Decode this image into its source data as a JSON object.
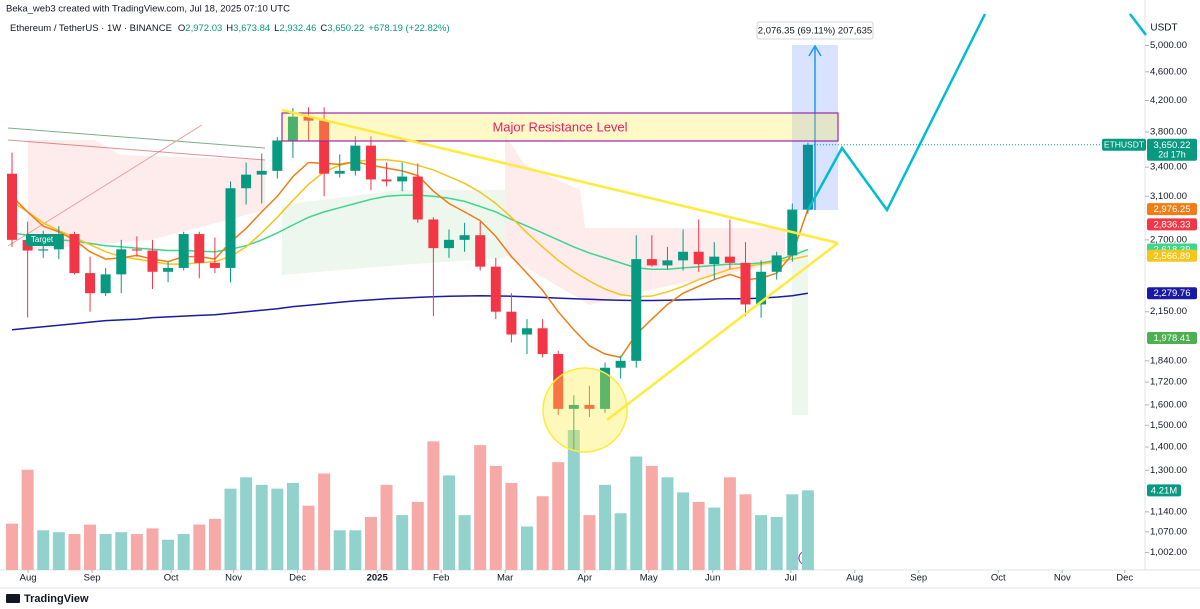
{
  "header": {
    "credit": "Beka_web3 created with TradingView.com, Jul 18, 2025 07:10 UTC",
    "symbol": "Ethereum / TetherUS · 1W · BINANCE",
    "open_letter": "O",
    "open": "2,972.03",
    "high_letter": "H",
    "high": "3,673.84",
    "low_letter": "L",
    "low": "2,932.46",
    "close_letter": "C",
    "close": "3,650.22",
    "change": "+678.19 (+22.82%)",
    "currency": "USDT"
  },
  "footer": {
    "brand": "TradingView"
  },
  "annotations": {
    "resistance": "Major Resistance Level",
    "measure": "2,076.35 (69.11%) 207,635",
    "target": "Target"
  },
  "chart_data": {
    "type": "candlestick",
    "log_scale": true,
    "grid": false,
    "up_color": "#089981",
    "down_color": "#f23645",
    "up_volume_color": "#92d2cc",
    "down_volume_color": "#f7a9a7",
    "ylim": [
      948,
      5560
    ],
    "yticks": [
      {
        "value": 1002,
        "label": "1,002.00"
      },
      {
        "value": 1070,
        "label": "1,070.00"
      },
      {
        "value": 1140,
        "label": "1,140.00"
      },
      {
        "value": 1300,
        "label": "1,300.00"
      },
      {
        "value": 1400,
        "label": "1,400.00"
      },
      {
        "value": 1500,
        "label": "1,500.00"
      },
      {
        "value": 1600,
        "label": "1,600.00"
      },
      {
        "value": 1720,
        "label": "1,720.00"
      },
      {
        "value": 1840,
        "label": "1,840.00"
      },
      {
        "value": 2150,
        "label": "2,150.00"
      },
      {
        "value": 2700,
        "label": "2,700.00"
      },
      {
        "value": 3100,
        "label": "3,100.00"
      },
      {
        "value": 3400,
        "label": "3,400.00"
      },
      {
        "value": 3800,
        "label": "3,800.00"
      },
      {
        "value": 4200,
        "label": "4,200.00"
      },
      {
        "value": 4600,
        "label": "4,600.00"
      },
      {
        "value": 5000,
        "label": "5,000.00"
      }
    ],
    "xlim": [
      -0.77,
      72.6
    ],
    "xticks": [
      {
        "value": 1.03,
        "label": "Aug"
      },
      {
        "value": 5.13,
        "label": "Sep"
      },
      {
        "value": 10.2,
        "label": "Oct"
      },
      {
        "value": 14.2,
        "label": "Nov"
      },
      {
        "value": 18.3,
        "label": "Dec"
      },
      {
        "value": 23.4,
        "label": "2025"
      },
      {
        "value": 27.5,
        "label": "Feb"
      },
      {
        "value": 31.6,
        "label": "Mar"
      },
      {
        "value": 36.7,
        "label": "Apr"
      },
      {
        "value": 40.8,
        "label": "May"
      },
      {
        "value": 44.9,
        "label": "Jun"
      },
      {
        "value": 49.9,
        "label": "Jul"
      },
      {
        "value": 54.0,
        "label": "Aug"
      },
      {
        "value": 58.1,
        "label": "Sep"
      },
      {
        "value": 63.2,
        "label": "Oct"
      },
      {
        "value": 67.3,
        "label": "Nov"
      },
      {
        "value": 71.3,
        "label": "Dec"
      }
    ],
    "open": [
      3330,
      2700,
      2610,
      2620,
      2750,
      2430,
      2280,
      2420,
      2620,
      2610,
      2440,
      2470,
      2750,
      2510,
      2470,
      3180,
      3320,
      3360,
      3700,
      3990,
      3940,
      3330,
      3360,
      3640,
      3270,
      3250,
      3300,
      2880,
      2630,
      2700,
      2740,
      2480,
      2150,
      2000,
      2040,
      1880,
      1580,
      1600,
      1580,
      1800,
      1840,
      2540,
      2490,
      2530,
      2600,
      2500,
      2560,
      2510,
      2200,
      2440,
      2570,
      2972.03
    ],
    "high": [
      3560,
      2860,
      2780,
      2820,
      2770,
      2560,
      2470,
      2700,
      2730,
      2700,
      2520,
      2770,
      2770,
      2720,
      3250,
      3450,
      3550,
      3740,
      4100,
      4110,
      4110,
      3540,
      3750,
      3750,
      3450,
      3450,
      3440,
      2900,
      2790,
      2850,
      2860,
      2550,
      2280,
      2100,
      2100,
      1900,
      1650,
      1700,
      1830,
      1870,
      2740,
      2740,
      2640,
      2790,
      2880,
      2680,
      2880,
      2680,
      2530,
      2600,
      3030,
      3673.84
    ],
    "low": [
      2640,
      2111,
      2550,
      2540,
      2420,
      2150,
      2260,
      2280,
      2560,
      2310,
      2360,
      2450,
      2390,
      2430,
      2360,
      3020,
      3030,
      3280,
      3500,
      3700,
      3100,
      3290,
      3310,
      3160,
      3200,
      3150,
      2850,
      2120,
      2550,
      2600,
      2450,
      2100,
      1950,
      1880,
      1860,
      1550,
      1390,
      1540,
      1560,
      1740,
      1800,
      2480,
      2460,
      2450,
      2440,
      2380,
      2460,
      2120,
      2110,
      2380,
      2520,
      2932.46
    ],
    "close": [
      2700,
      2610,
      2620,
      2750,
      2430,
      2280,
      2420,
      2620,
      2610,
      2440,
      2470,
      2750,
      2510,
      2470,
      3180,
      3320,
      3360,
      3700,
      3990,
      3940,
      3330,
      3360,
      3640,
      3270,
      3250,
      3300,
      2880,
      2630,
      2700,
      2740,
      2480,
      2150,
      2000,
      2040,
      1880,
      1580,
      1600,
      1580,
      1800,
      1840,
      2540,
      2490,
      2530,
      2600,
      2500,
      2560,
      2510,
      2200,
      2440,
      2570,
      2972.03,
      3650.22
    ],
    "volume": {
      "values": [
        2.45,
        5.3,
        2.1,
        2.0,
        1.9,
        2.4,
        1.9,
        2.0,
        1.9,
        2.2,
        1.6,
        1.9,
        2.4,
        2.7,
        4.3,
        4.9,
        4.5,
        4.3,
        4.6,
        3.4,
        5.1,
        2.1,
        2.1,
        2.8,
        4.5,
        2.9,
        3.6,
        6.8,
        5.0,
        2.9,
        6.6,
        5.5,
        4.6,
        2.3,
        3.9,
        5.7,
        7.4,
        2.9,
        4.5,
        3.0,
        6.0,
        5.5,
        4.9,
        4.1,
        3.6,
        3.3,
        4.9,
        4.0,
        2.9,
        2.8,
        4.0,
        4.21
      ],
      "value_labels": [
        null,
        null,
        null,
        null,
        null,
        null,
        null,
        null,
        null,
        null,
        null,
        null,
        null,
        null,
        null,
        null,
        null,
        null,
        null,
        null,
        null,
        null,
        null,
        null,
        null,
        null,
        null,
        null,
        null,
        null,
        null,
        null,
        null,
        null,
        null,
        null,
        null,
        null,
        null,
        null,
        null,
        null,
        null,
        null,
        null,
        null,
        null,
        null,
        null,
        null,
        null,
        "4.21M"
      ]
    },
    "last_price": {
      "name": "ETHUSDT",
      "label": "3,650.22",
      "countdown": "2d 17h"
    },
    "series": [
      {
        "color": "#1a1aa6",
        "last_label": "2,279.76",
        "values": [
          2030,
          2040,
          2050,
          2060,
          2070,
          2080,
          2090,
          2095,
          2100,
          2110,
          2115,
          2120,
          2125,
          2130,
          2140,
          2150,
          2160,
          2170,
          2185,
          2195,
          2205,
          2215,
          2225,
          2232,
          2240,
          2245,
          2250,
          2255,
          2258,
          2260,
          2262,
          2260,
          2258,
          2255,
          2250,
          2245,
          2240,
          2236,
          2232,
          2230,
          2228,
          2228,
          2230,
          2232,
          2235,
          2238,
          2240,
          2240,
          2245,
          2252,
          2262,
          2279.76
        ]
      },
      {
        "color": "#3dd68c",
        "last_label": "2,618.39",
        "values": [
          2760,
          2740,
          2720,
          2700,
          2690,
          2670,
          2650,
          2640,
          2630,
          2620,
          2610,
          2610,
          2605,
          2600,
          2620,
          2650,
          2700,
          2760,
          2830,
          2900,
          2950,
          2990,
          3030,
          3070,
          3100,
          3110,
          3110,
          3100,
          3080,
          3050,
          3000,
          2950,
          2880,
          2820,
          2760,
          2700,
          2640,
          2590,
          2550,
          2510,
          2470,
          2460,
          2460,
          2470,
          2480,
          2490,
          2500,
          2500,
          2510,
          2530,
          2570,
          2618.39
        ]
      },
      {
        "color": "#f5c518",
        "last_label": "2,566.89",
        "values": [
          3050,
          2950,
          2850,
          2780,
          2720,
          2660,
          2600,
          2560,
          2540,
          2520,
          2500,
          2500,
          2510,
          2520,
          2560,
          2640,
          2760,
          2900,
          3060,
          3220,
          3350,
          3420,
          3460,
          3480,
          3480,
          3460,
          3420,
          3370,
          3300,
          3230,
          3140,
          3030,
          2900,
          2760,
          2640,
          2530,
          2440,
          2370,
          2310,
          2270,
          2255,
          2260,
          2290,
          2330,
          2380,
          2420,
          2460,
          2480,
          2500,
          2520,
          2540,
          2566.89
        ]
      },
      {
        "color": "#ef7d14",
        "last_label": "2,976.25",
        "values": [
          3100,
          2950,
          2820,
          2770,
          2700,
          2600,
          2540,
          2550,
          2570,
          2540,
          2520,
          2560,
          2560,
          2540,
          2680,
          2800,
          2950,
          3100,
          3300,
          3450,
          3440,
          3430,
          3460,
          3420,
          3390,
          3360,
          3310,
          3150,
          3030,
          2950,
          2870,
          2730,
          2560,
          2430,
          2300,
          2150,
          2030,
          1930,
          1880,
          1860,
          2000,
          2100,
          2200,
          2280,
          2330,
          2380,
          2420,
          2380,
          2390,
          2430,
          2580,
          2976.25
        ]
      }
    ],
    "extra_levels": [
      {
        "value": 2836.33,
        "label": "2,836.33",
        "color": "#f23645"
      },
      {
        "value": 1978.41,
        "label": "1,978.41",
        "color": "#4caf50"
      }
    ]
  }
}
